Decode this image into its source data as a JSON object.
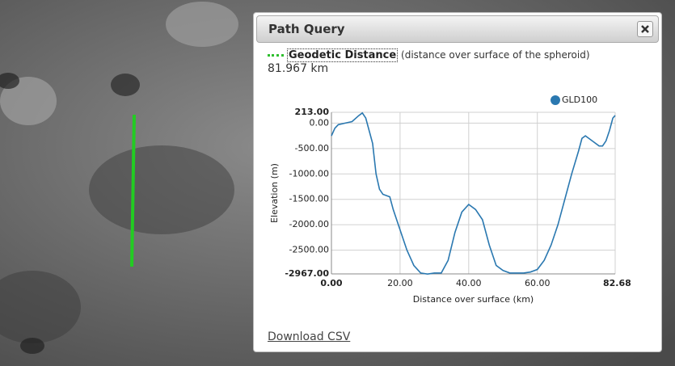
{
  "panel": {
    "title": "Path Query",
    "measure_label": "Geodetic Distance",
    "measure_note": "(distance over surface of the spheroid)",
    "distance": "81.967 km",
    "download": "Download CSV"
  },
  "chart_data": {
    "type": "line",
    "x_label": "Distance over surface (km)",
    "y_label": "Elevation (m)",
    "x": [
      0,
      1,
      2,
      4,
      6,
      8,
      9,
      10,
      12,
      13,
      14,
      15,
      17,
      18,
      20,
      22,
      24,
      26,
      28,
      30,
      32,
      34,
      36,
      38,
      40,
      42,
      44,
      46,
      48,
      50,
      52,
      54,
      56,
      58,
      60,
      62,
      64,
      66,
      68,
      70,
      72,
      73,
      74,
      76,
      78,
      79,
      80,
      81,
      82,
      82.68
    ],
    "series": [
      {
        "name": "GLD100",
        "color": "#2a78b0",
        "values": [
          -250,
          -100,
          -30,
          0,
          30,
          150,
          200,
          100,
          -400,
          -1000,
          -1300,
          -1400,
          -1450,
          -1700,
          -2100,
          -2500,
          -2800,
          -2950,
          -2970,
          -2950,
          -2950,
          -2700,
          -2150,
          -1750,
          -1600,
          -1700,
          -1900,
          -2400,
          -2800,
          -2900,
          -2950,
          -2950,
          -2950,
          -2930,
          -2880,
          -2700,
          -2400,
          -2000,
          -1500,
          -1000,
          -550,
          -300,
          -250,
          -350,
          -450,
          -450,
          -350,
          -150,
          100,
          150
        ]
      }
    ],
    "xlim": [
      0,
      82.68
    ],
    "ylim": [
      -2967,
      213
    ],
    "xticks": [
      {
        "value": 0,
        "label": "0.00"
      },
      {
        "value": 20,
        "label": "20.00"
      },
      {
        "value": 40,
        "label": "40.00"
      },
      {
        "value": 60,
        "label": "60.00"
      },
      {
        "value": 82.68,
        "label": "82.68"
      }
    ],
    "yticks": [
      {
        "value": 213,
        "label": "213.00"
      },
      {
        "value": 0,
        "label": "0.00"
      },
      {
        "value": -500,
        "label": "-500.00"
      },
      {
        "value": -1000,
        "label": "-1000.00"
      },
      {
        "value": -1500,
        "label": "-1500.00"
      },
      {
        "value": -2000,
        "label": "-2000.00"
      },
      {
        "value": -2500,
        "label": "-2500.00"
      },
      {
        "value": -2967,
        "label": "-2967.00"
      }
    ],
    "grid": true,
    "legend": "top-right"
  }
}
